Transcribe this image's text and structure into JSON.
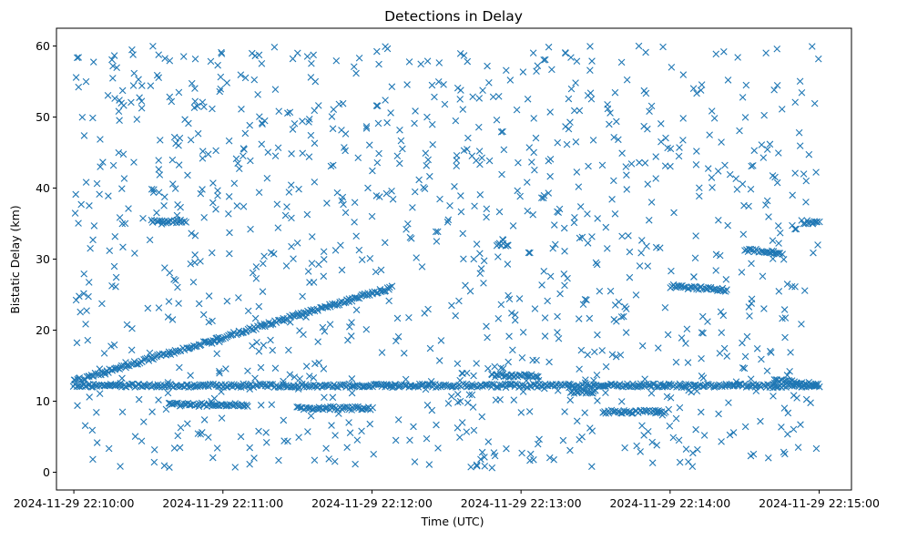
{
  "chart_data": {
    "type": "scatter",
    "title": "Detections in Delay",
    "xlabel": "Time (UTC)",
    "ylabel": "Bistatic Delay (km)",
    "x_ticks": [
      "2024-11-29 22:10:00",
      "2024-11-29 22:11:00",
      "2024-11-29 22:12:00",
      "2024-11-29 22:13:00",
      "2024-11-29 22:14:00",
      "2024-11-29 22:15:00"
    ],
    "y_ticks": [
      "0",
      "10",
      "20",
      "30",
      "40",
      "50",
      "60"
    ],
    "xlim": [
      "2024-11-29 22:09:53",
      "2024-11-29 22:15:13"
    ],
    "ylim": [
      -2.5,
      62.5
    ],
    "marker": "x",
    "color": "#1f77b4",
    "grid": false,
    "legend": "none",
    "series": [
      {
        "tracks": [
          {
            "start": "2024-11-29 22:10:00",
            "end": "2024-11-29 22:12:08",
            "y0": 12.8,
            "y1": 26.0
          },
          {
            "start": "2024-11-29 22:10:00",
            "end": "2024-11-29 22:15:00",
            "y0": 12.2,
            "y1": 12.2
          },
          {
            "start": "2024-11-29 22:10:38",
            "end": "2024-11-29 22:11:10",
            "y0": 9.5,
            "y1": 9.5
          },
          {
            "start": "2024-11-29 22:11:30",
            "end": "2024-11-29 22:12:00",
            "y0": 9.0,
            "y1": 9.0
          },
          {
            "start": "2024-11-29 22:12:48",
            "end": "2024-11-29 22:13:07",
            "y0": 13.6,
            "y1": 13.6
          },
          {
            "start": "2024-11-29 22:13:33",
            "end": "2024-11-29 22:13:58",
            "y0": 8.5,
            "y1": 8.5
          },
          {
            "start": "2024-11-29 22:14:00",
            "end": "2024-11-29 22:14:23",
            "y0": 26.2,
            "y1": 25.6
          },
          {
            "start": "2024-11-29 22:14:30",
            "end": "2024-11-29 22:14:45",
            "y0": 31.3,
            "y1": 30.9
          },
          {
            "start": "2024-11-29 22:14:42",
            "end": "2024-11-29 22:14:59",
            "y0": 12.9,
            "y1": 12.3
          },
          {
            "start": "2024-11-29 22:10:32",
            "end": "2024-11-29 22:10:45",
            "y0": 35.3,
            "y1": 35.3
          },
          {
            "start": "2024-11-29 22:12:50",
            "end": "2024-11-29 22:12:55",
            "y0": 32.0,
            "y1": 32.0
          },
          {
            "start": "2024-11-29 22:14:53",
            "end": "2024-11-29 22:15:00",
            "y0": 35.2,
            "y1": 35.2
          },
          {
            "start": "2024-11-29 22:13:20",
            "end": "2024-11-29 22:13:30",
            "y0": 11.3,
            "y1": 11.3
          }
        ],
        "clutter": {
          "x_range": [
            "2024-11-29 22:10:00",
            "2024-11-29 22:15:00"
          ],
          "y_range": [
            0.5,
            60.0
          ],
          "approx_count": 1100
        }
      }
    ]
  }
}
